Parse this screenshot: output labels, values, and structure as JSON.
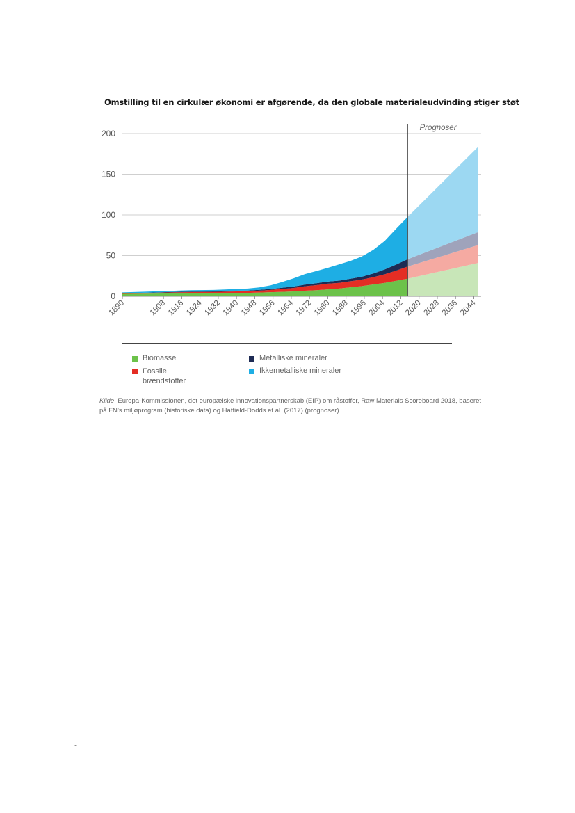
{
  "chart_data": {
    "type": "area",
    "title": "Omstilling til en cirkulær økonomi er afgørende, da den globale materialeudvinding stiger støt",
    "xlabel": "",
    "ylabel": "",
    "ylim": [
      0,
      200
    ],
    "xlim": [
      1890,
      2046
    ],
    "yticks": [
      0,
      50,
      100,
      150,
      200
    ],
    "xticks": [
      "1890",
      "1908",
      "1916",
      "1924",
      "1932",
      "1940",
      "1948",
      "1956",
      "1964",
      "1972",
      "1980",
      "1988",
      "1996",
      "2004",
      "2012",
      "2020",
      "2028",
      "2036",
      "2044"
    ],
    "grid": true,
    "stacked": true,
    "forecast_label": "Prognoser",
    "forecast_start": 2015,
    "x": [
      1890,
      1900,
      1910,
      1920,
      1930,
      1935,
      1940,
      1945,
      1950,
      1955,
      1960,
      1965,
      1970,
      1975,
      1980,
      1985,
      1990,
      1995,
      2000,
      2005,
      2010,
      2015,
      2046
    ],
    "series": [
      {
        "name": "Biomasse",
        "color": "#6cc24a",
        "forecast_color": "#c8e6b8",
        "values": [
          3,
          3.2,
          3.5,
          3.7,
          3.8,
          4,
          4.2,
          4.2,
          4.6,
          5,
          5.5,
          6,
          6.8,
          7.5,
          8.5,
          9.5,
          11,
          12.5,
          14.5,
          16.5,
          19,
          21.5,
          41
        ]
      },
      {
        "name": "Fossile brændstoffer",
        "color": "#e42d24",
        "forecast_color": "#f5aaa2",
        "values": [
          0.5,
          0.8,
          1.2,
          1.4,
          1.6,
          1.6,
          1.8,
          2,
          2.3,
          2.8,
          3.5,
          4.2,
          5.5,
          6.2,
          7,
          7,
          7.5,
          8,
          9,
          10.5,
          12.5,
          15,
          22
        ]
      },
      {
        "name": "Metalliske mineraler",
        "color": "#1e2b54",
        "forecast_color": "#9fa3bb",
        "values": [
          0.3,
          0.4,
          0.5,
          0.6,
          0.6,
          0.7,
          0.8,
          0.9,
          1,
          1.2,
          1.5,
          1.8,
          2,
          2.3,
          2.5,
          2.7,
          3,
          3.5,
          4.5,
          6,
          7.5,
          9,
          16
        ]
      },
      {
        "name": "Ikkemetalliske mineraler",
        "color": "#1eaee4",
        "forecast_color": "#9cd8f2",
        "values": [
          1,
          1.2,
          1.5,
          1.7,
          1.8,
          2,
          2.2,
          2.4,
          3,
          4.5,
          7,
          10,
          13,
          15,
          17,
          20,
          22,
          25,
          29,
          35,
          44,
          52,
          105
        ]
      }
    ]
  },
  "legend": {
    "items": [
      {
        "label": "Biomasse",
        "color": "#6cc24a"
      },
      {
        "label": "Fossile brændstoffer",
        "color": "#e42d24"
      },
      {
        "label": "Metalliske mineraler",
        "color": "#1e2b54"
      },
      {
        "label": "Ikkemetalliske mineraler",
        "color": "#1eaee4"
      }
    ]
  },
  "source": {
    "label": "Kilde",
    "text": ": Europa-Kommissionen, det europæiske innovationspartnerskab (EIP) om råstoffer, Raw Materials Scoreboard 2018, baseret på FN’s miljøprogram (historiske data) og Hatfield-Dodds et al. (2017) (prognoser)."
  },
  "footnote": {
    "marker": "-"
  }
}
